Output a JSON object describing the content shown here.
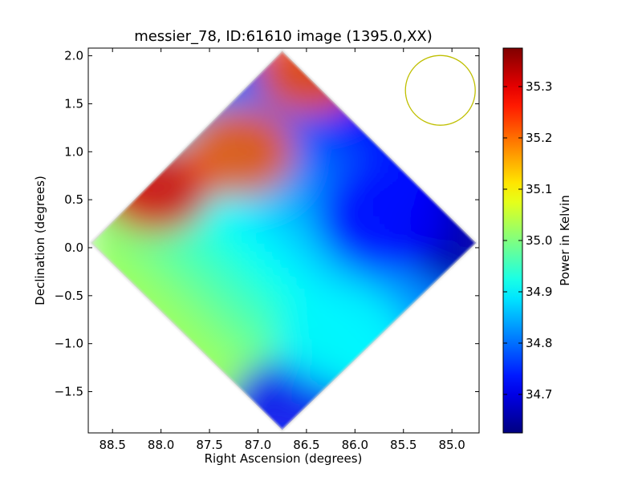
{
  "chart_data": {
    "type": "heatmap",
    "title": "messier_78, ID:61610 image (1395.0,XX)",
    "xlabel": "Right Ascension (degrees)",
    "ylabel": "Declination (degrees)",
    "colorbar_label": "Power in Kelvin",
    "xlim": [
      88.75,
      84.72
    ],
    "ylim": [
      -1.93,
      2.08
    ],
    "x_ticks": [
      88.5,
      88.0,
      87.5,
      87.0,
      86.5,
      86.0,
      85.5,
      85.0
    ],
    "x_tick_labels": [
      "88.5",
      "88.0",
      "87.5",
      "87.0",
      "86.5",
      "86.0",
      "85.5",
      "85.0"
    ],
    "y_ticks": [
      -1.5,
      -1.0,
      -0.5,
      0.0,
      0.5,
      1.0,
      1.5,
      2.0
    ],
    "y_tick_labels": [
      "−1.5",
      "−1.0",
      "−0.5",
      "0.0",
      "0.5",
      "1.0",
      "1.5",
      "2.0"
    ],
    "colorbar_range": [
      34.625,
      35.375
    ],
    "colorbar_ticks": [
      34.7,
      34.8,
      34.9,
      35.0,
      35.1,
      35.2,
      35.3
    ],
    "colorbar_tick_labels": [
      "34.7",
      "34.8",
      "34.9",
      "35.0",
      "35.1",
      "35.2",
      "35.3"
    ],
    "colormap": "jet",
    "footprint": {
      "shape": "diamond",
      "vertices": [
        [
          86.75,
          2.05
        ],
        [
          84.75,
          0.05
        ],
        [
          86.75,
          -1.9
        ],
        [
          88.72,
          0.05
        ]
      ]
    },
    "features": [
      {
        "name": "hot peak",
        "ra": 88.05,
        "dec": 0.62,
        "value": 35.3
      },
      {
        "name": "warm ridge",
        "ra": 87.2,
        "dec": 1.0,
        "value": 35.22
      },
      {
        "name": "warm top edge",
        "ra": 86.45,
        "dec": 1.85,
        "value": 35.22
      },
      {
        "name": "cool minimum",
        "ra": 84.85,
        "dec": 0.12,
        "value": 34.65
      },
      {
        "name": "cool region",
        "ra": 85.7,
        "dec": 0.3,
        "value": 34.72
      },
      {
        "name": "cool bottom",
        "ra": 86.65,
        "dec": -1.7,
        "value": 34.72
      },
      {
        "name": "warm spot",
        "ra": 86.15,
        "dec": -0.95,
        "value": 34.9
      }
    ],
    "beam_circle": {
      "ra": 85.12,
      "dec": 1.64,
      "radius_deg": 0.36,
      "color": "#bfbf00"
    },
    "grid": false
  }
}
